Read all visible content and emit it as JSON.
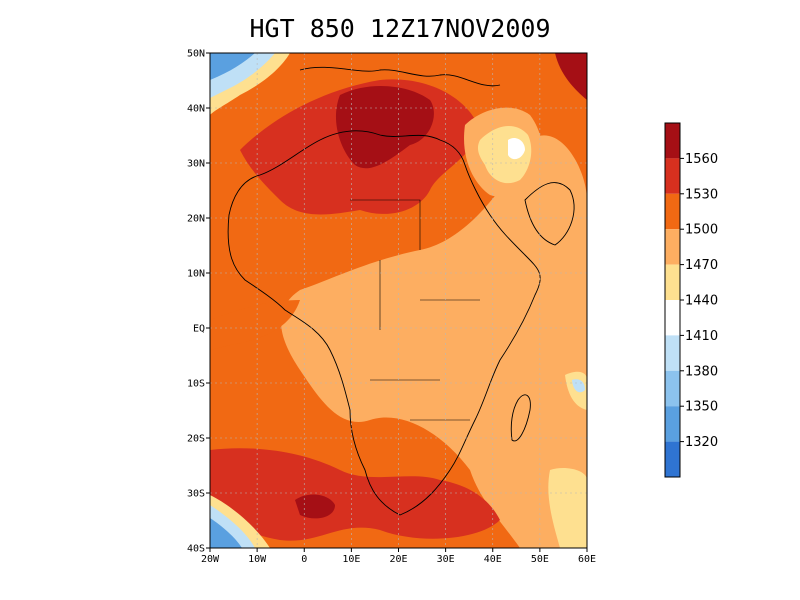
{
  "title": "HGT 850 12Z17NOV2009",
  "map": {
    "lat_labels": [
      "50N",
      "40N",
      "30N",
      "20N",
      "10N",
      "EQ",
      "10S",
      "20S",
      "30S",
      "40S"
    ],
    "lat_values": [
      50,
      40,
      30,
      20,
      10,
      0,
      -10,
      -20,
      -30,
      -40
    ],
    "lon_labels": [
      "20W",
      "10W",
      "0",
      "10E",
      "20E",
      "30E",
      "40E",
      "50E",
      "60E"
    ],
    "lon_values": [
      -20,
      -10,
      0,
      10,
      20,
      30,
      40,
      50,
      60
    ],
    "extent": {
      "lon_min": -20,
      "lon_max": 60,
      "lat_min": -40,
      "lat_max": 50
    }
  },
  "colorbar": {
    "labels": [
      "1560",
      "1530",
      "1500",
      "1470",
      "1440",
      "1410",
      "1380",
      "1350",
      "1320"
    ],
    "colors": [
      "#a50f15",
      "#d7301f",
      "#f16913",
      "#fdae61",
      "#fee090",
      "#ffffff",
      "#bfe0f6",
      "#8cc3ee",
      "#5aa0e0",
      "#2f74d2"
    ]
  }
}
